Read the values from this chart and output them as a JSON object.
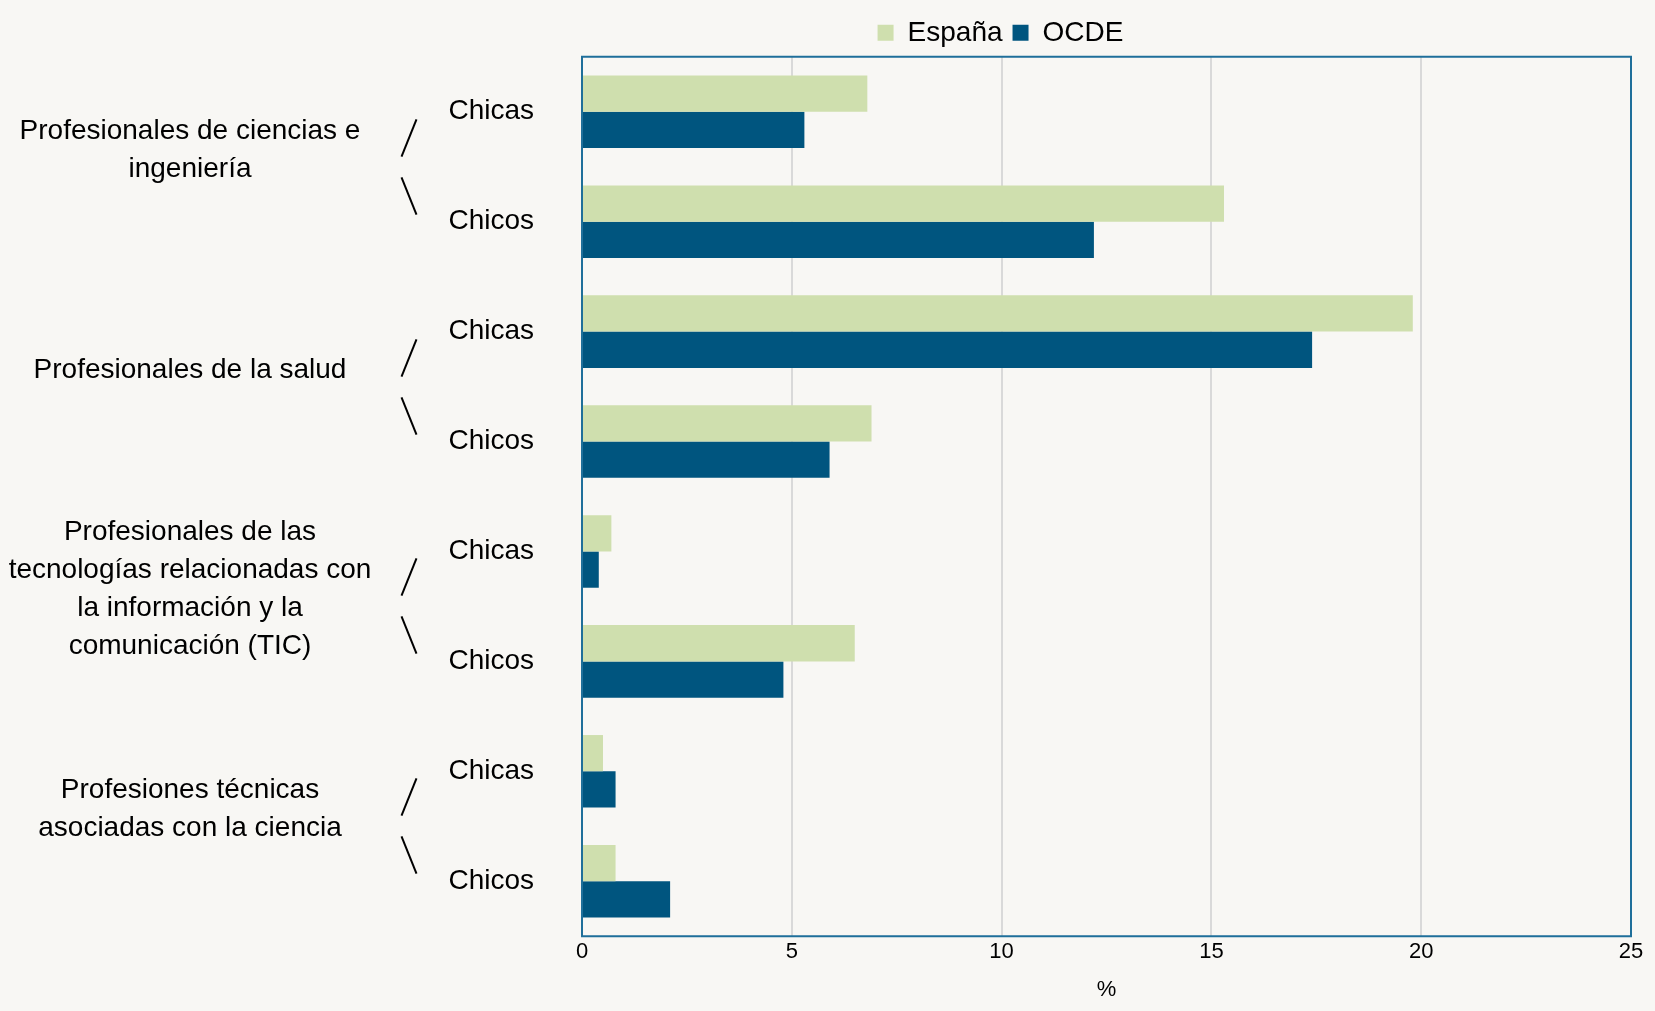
{
  "chart_data": {
    "type": "bar",
    "orientation": "horizontal",
    "xlabel": "%",
    "categories": [
      "Chicas",
      "Chicos",
      "Chicas",
      "Chicos",
      "Chicas",
      "Chicos",
      "Chicas",
      "Chicos"
    ],
    "series": [
      {
        "name": "España",
        "color": "#cfdfae",
        "values": [
          6.8,
          15.3,
          19.8,
          6.9,
          0.7,
          6.5,
          0.5,
          0.8
        ]
      },
      {
        "name": "OCDE",
        "color": "#00557f",
        "values": [
          5.3,
          12.2,
          17.4,
          5.9,
          0.4,
          4.8,
          0.8,
          2.1
        ]
      }
    ],
    "xlim": [
      0,
      25
    ],
    "xticks": [
      0,
      5,
      10,
      15,
      20,
      25
    ],
    "grid": "x",
    "legend": "top",
    "annotations": [
      "Profesionales de ciencias e ingeniería",
      "Profesionales de la salud",
      "Profesionales de las tecnologías relacionadas con la información y la comunicación (TIC)",
      "Profesiones técnicas asociadas con la ciencia"
    ]
  }
}
